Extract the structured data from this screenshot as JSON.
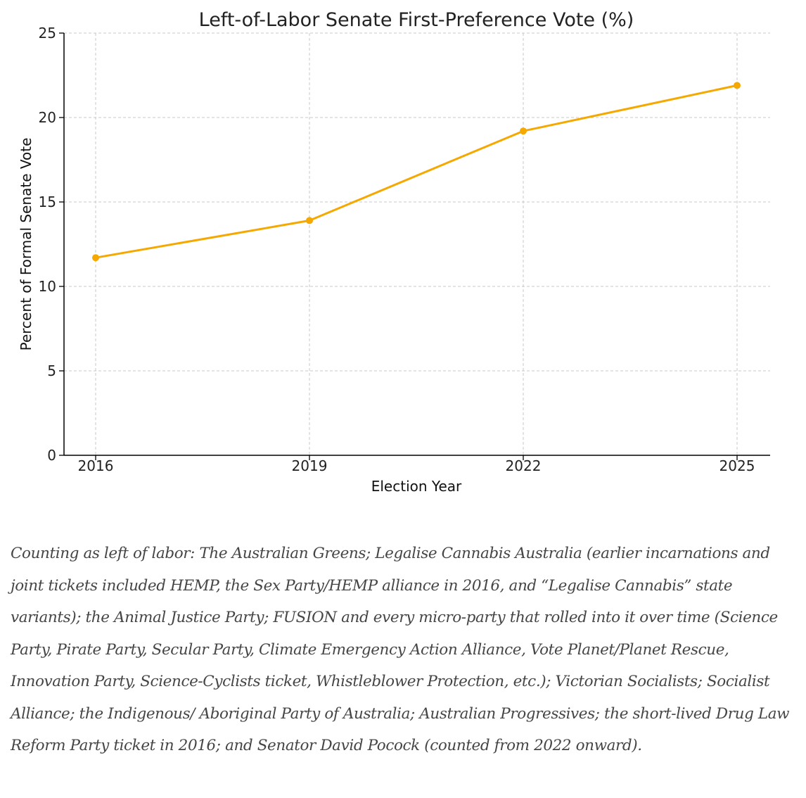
{
  "chart_data": {
    "type": "line",
    "title": "Left-of-Labor Senate First-Preference Vote (%)",
    "xlabel": "Election Year",
    "ylabel": "Percent of Formal Senate Vote",
    "categories": [
      "2016",
      "2019",
      "2022",
      "2025"
    ],
    "series": [
      {
        "values": [
          11.7,
          13.9,
          19.2,
          21.9
        ],
        "color": "#F5A800"
      }
    ],
    "ylim": [
      0,
      25
    ],
    "yticks": [
      0,
      5,
      10,
      15,
      20,
      25
    ],
    "grid": true,
    "grid_style": "dashed",
    "legend": "none"
  },
  "caption": {
    "text": "Counting as left of labor: The Australian Greens; Legalise Cannabis Australia (earlier incarnations and joint tickets included HEMP, the Sex Party/HEMP alliance in 2016, and “Legalise Cannabis” state variants); the Animal Justice Party; FUSION and every micro-party that rolled into it over time (Science Party, Pirate Party, Secular Party, Climate Emergency Action Alliance, Vote Planet/Planet Rescue, Innovation Party, Science-Cyclists ticket, Whistleblower Protection, etc.); Victorian Socialists; Socialist Alliance; the Indigenous/ Aboriginal Party of Australia; Australian Progressives; the short-lived Drug Law Reform Party ticket in 2016; and Senator David Pocock (counted from 2022 onward)."
  }
}
